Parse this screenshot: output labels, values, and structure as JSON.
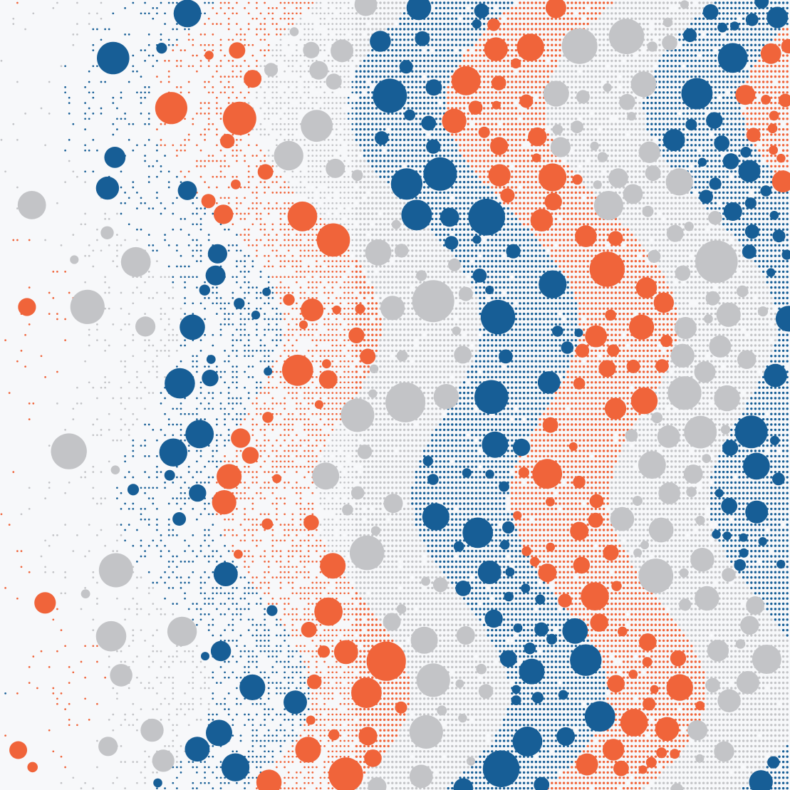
{
  "palette": {
    "background": "#f7f8fa",
    "orange": "#f0643a",
    "blue": "#175e96",
    "gray": "#c3c4c7"
  },
  "pattern": {
    "band_order": [
      "orange",
      "gray",
      "blue"
    ],
    "description_style": "generative dot-matrix with scattered large circles"
  }
}
